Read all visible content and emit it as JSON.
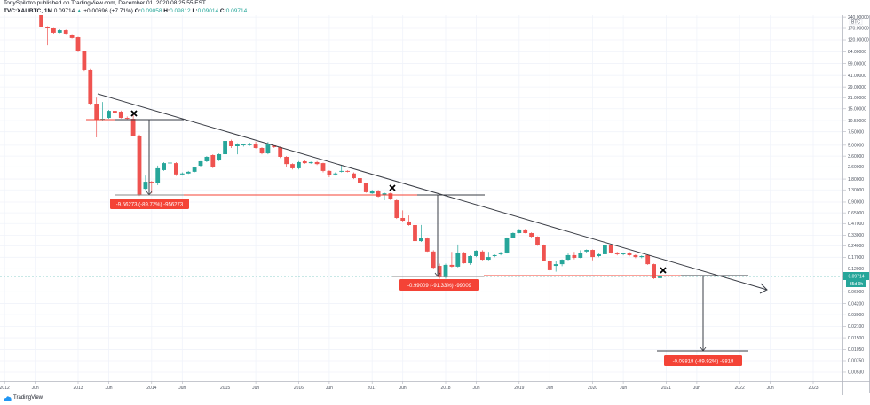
{
  "header": {
    "publish_line": "TonySpilotro published on TradingView.com, December 01, 2020 08:25:55 EST",
    "symbol": "TVC:XAUBTC, 1M",
    "last": "0.09714",
    "change": "+0.00696 (+7.71%)",
    "o_label": "O:",
    "o": "0.09058",
    "h_label": "H:",
    "h": "0.09812",
    "l_label": "L:",
    "l": "0.09014",
    "c_label": "C:",
    "c": "0.09714"
  },
  "brand": "TradingView",
  "colors": {
    "up": "#26a69a",
    "down": "#ef5350",
    "grid": "#f0f3fa",
    "measure": "#f44336",
    "trend": "#3a3d45"
  },
  "chart_data": {
    "type": "candlestick",
    "interval": "1M",
    "y_scale": "log",
    "y_unit": "BTC",
    "grid": true,
    "y_ticks": [
      "240.00000",
      "170.00000",
      "120.00000",
      "84.00000",
      "59.00000",
      "41.00000",
      "29.00000",
      "21.00000",
      "15.00000",
      "10.50000",
      "7.50000",
      "5.00000",
      "3.60000",
      "2.60000",
      "1.80000",
      "1.30000",
      "0.90000",
      "0.65000",
      "0.47000",
      "0.33000",
      "0.24000",
      "0.17000",
      "0.12000",
      "0.06000",
      "0.04200",
      "0.03000",
      "0.02100",
      "0.01500",
      "0.01050",
      "0.00750",
      "0.00530"
    ],
    "x_ticks": [
      {
        "label": "2012",
        "month": "2012-01"
      },
      {
        "label": "Jun",
        "month": "2012-06"
      },
      {
        "label": "2013",
        "month": "2013-01"
      },
      {
        "label": "Jun",
        "month": "2013-06"
      },
      {
        "label": "2014",
        "month": "2014-01"
      },
      {
        "label": "Jun",
        "month": "2014-06"
      },
      {
        "label": "2015",
        "month": "2015-01"
      },
      {
        "label": "Jun",
        "month": "2015-06"
      },
      {
        "label": "2016",
        "month": "2016-01"
      },
      {
        "label": "Jun",
        "month": "2016-06"
      },
      {
        "label": "2017",
        "month": "2017-01"
      },
      {
        "label": "Jun",
        "month": "2017-06"
      },
      {
        "label": "2018",
        "month": "2018-01"
      },
      {
        "label": "Jun",
        "month": "2018-06"
      },
      {
        "label": "2019",
        "month": "2019-01"
      },
      {
        "label": "Jun",
        "month": "2019-06"
      },
      {
        "label": "2020",
        "month": "2020-01"
      },
      {
        "label": "Jun",
        "month": "2020-06"
      },
      {
        "label": "2021",
        "month": "2021-01"
      },
      {
        "label": "Jun",
        "month": "2021-06"
      },
      {
        "label": "2022",
        "month": "2022-01"
      },
      {
        "label": "Jun",
        "month": "2022-06"
      },
      {
        "label": "2023",
        "month": "2023-01"
      }
    ],
    "last_price_label": "0.09714",
    "countdown_label": "35d 9h",
    "measurements": [
      {
        "label": "-9.56273 (-89.72%) -956273"
      },
      {
        "label": "-0.99009 (-91.33%) -99009"
      },
      {
        "label": "-0.08818 (-89.92%) -8818"
      }
    ],
    "candles_columns": [
      "month",
      "open",
      "high",
      "low",
      "close"
    ],
    "candles": [
      [
        "2012-07",
        260,
        306,
        175,
        179
      ],
      [
        "2012-08",
        179,
        182,
        102,
        170
      ],
      [
        "2012-09",
        170,
        172,
        145,
        149
      ],
      [
        "2012-10",
        149,
        165,
        147,
        161
      ],
      [
        "2012-11",
        161,
        164,
        143,
        145
      ],
      [
        "2012-12",
        141,
        143,
        125,
        127
      ],
      [
        "2013-01",
        130,
        132,
        83,
        84.8
      ],
      [
        "2013-02",
        84.8,
        86,
        47,
        48.4
      ],
      [
        "2013-03",
        48.4,
        50,
        17,
        17.5
      ],
      [
        "2013-04",
        17.5,
        21,
        6.34,
        10.8
      ],
      [
        "2013-05",
        10.8,
        18.4,
        10.5,
        11.1
      ],
      [
        "2013-06",
        11.4,
        14.5,
        11.1,
        14.1
      ],
      [
        "2013-07",
        14.1,
        19.5,
        13.2,
        13.4
      ],
      [
        "2013-08",
        13.75,
        14.2,
        11.2,
        11.4
      ],
      [
        "2013-09",
        11.4,
        11.9,
        10.9,
        11.1
      ],
      [
        "2013-10",
        11.1,
        12.5,
        6.5,
        6.68
      ],
      [
        "2013-11",
        6.68,
        6.9,
        1.08,
        1.11
      ],
      [
        "2013-12",
        1.34,
        2.0,
        1.3,
        1.66
      ],
      [
        "2014-01",
        1.66,
        1.7,
        1.17,
        1.58
      ],
      [
        "2014-02",
        1.58,
        2.7,
        1.5,
        2.49
      ],
      [
        "2014-03",
        2.36,
        3.0,
        2.3,
        2.91
      ],
      [
        "2014-04",
        2.91,
        3.3,
        2.8,
        2.95
      ],
      [
        "2014-05",
        2.91,
        3.0,
        1.98,
        2.07
      ],
      [
        "2014-06",
        2.07,
        2.2,
        2.0,
        2.13
      ],
      [
        "2014-07",
        2.13,
        2.3,
        2.1,
        2.24
      ],
      [
        "2014-08",
        2.24,
        2.6,
        2.2,
        2.55
      ],
      [
        "2014-09",
        2.69,
        3.1,
        2.6,
        3.08
      ],
      [
        "2014-10",
        3.08,
        3.6,
        3.0,
        3.52
      ],
      [
        "2014-11",
        3.71,
        3.8,
        2.5,
        2.62
      ],
      [
        "2014-12",
        3.16,
        3.9,
        3.1,
        3.81
      ],
      [
        "2015-01",
        3.81,
        7.86,
        3.7,
        5.69
      ],
      [
        "2015-02",
        5.69,
        5.9,
        4.6,
        4.85
      ],
      [
        "2015-03",
        4.85,
        5.3,
        3.8,
        5.11
      ],
      [
        "2015-04",
        4.98,
        5.2,
        4.8,
        5.11
      ],
      [
        "2015-05",
        5.0,
        5.4,
        4.9,
        5.11
      ],
      [
        "2015-06",
        5.11,
        5.6,
        4.5,
        4.6
      ],
      [
        "2015-07",
        4.6,
        4.7,
        3.8,
        3.91
      ],
      [
        "2015-08",
        3.91,
        5.5,
        3.8,
        5.11
      ],
      [
        "2015-09",
        4.98,
        5.0,
        4.6,
        4.72
      ],
      [
        "2015-10",
        4.72,
        4.8,
        3.4,
        3.52
      ],
      [
        "2015-11",
        3.52,
        3.6,
        2.6,
        2.83
      ],
      [
        "2015-12",
        2.83,
        2.9,
        2.4,
        2.49
      ],
      [
        "2016-01",
        2.49,
        3.1,
        2.4,
        3.0
      ],
      [
        "2016-02",
        3.08,
        3.2,
        2.85,
        2.91
      ],
      [
        "2016-03",
        2.91,
        3.05,
        2.85,
        3.0
      ],
      [
        "2016-04",
        3.0,
        3.1,
        2.75,
        2.83
      ],
      [
        "2016-05",
        2.91,
        2.95,
        2.2,
        2.3
      ],
      [
        "2016-06",
        2.3,
        2.35,
        1.9,
        2.02
      ],
      [
        "2016-07",
        2.07,
        2.2,
        2.0,
        2.13
      ],
      [
        "2016-08",
        2.24,
        2.75,
        2.2,
        2.3
      ],
      [
        "2016-09",
        2.3,
        2.35,
        2.2,
        2.24
      ],
      [
        "2016-10",
        2.13,
        2.2,
        1.8,
        1.85
      ],
      [
        "2016-11",
        1.85,
        1.95,
        1.6,
        1.62
      ],
      [
        "2016-12",
        1.58,
        1.6,
        1.19,
        1.21
      ],
      [
        "2017-01",
        1.17,
        1.3,
        1.15,
        1.27
      ],
      [
        "2017-02",
        1.27,
        1.3,
        1.04,
        1.06
      ],
      [
        "2017-03",
        1.11,
        1.2,
        0.95,
        1.17
      ],
      [
        "2017-04",
        1.17,
        1.2,
        0.95,
        0.974
      ],
      [
        "2017-05",
        0.948,
        0.97,
        0.54,
        0.556
      ],
      [
        "2017-06",
        0.556,
        0.7,
        0.5,
        0.513
      ],
      [
        "2017-07",
        0.5,
        0.6,
        0.44,
        0.449
      ],
      [
        "2017-08",
        0.449,
        0.46,
        0.27,
        0.277
      ],
      [
        "2017-09",
        0.277,
        0.45,
        0.27,
        0.308
      ],
      [
        "2017-10",
        0.3,
        0.31,
        0.2,
        0.202
      ],
      [
        "2017-11",
        0.202,
        0.21,
        0.12,
        0.124
      ],
      [
        "2017-12",
        0.131,
        0.14,
        0.089,
        0.0927
      ],
      [
        "2018-01",
        0.0927,
        0.14,
        0.089,
        0.135
      ],
      [
        "2018-02",
        0.135,
        0.2,
        0.125,
        0.128
      ],
      [
        "2018-03",
        0.128,
        0.25,
        0.125,
        0.196
      ],
      [
        "2018-04",
        0.196,
        0.2,
        0.14,
        0.142
      ],
      [
        "2018-05",
        0.142,
        0.18,
        0.135,
        0.176
      ],
      [
        "2018-06",
        0.176,
        0.21,
        0.17,
        0.207
      ],
      [
        "2018-07",
        0.202,
        0.21,
        0.155,
        0.158
      ],
      [
        "2018-08",
        0.158,
        0.2,
        0.155,
        0.171
      ],
      [
        "2018-09",
        0.176,
        0.185,
        0.17,
        0.181
      ],
      [
        "2018-10",
        0.186,
        0.2,
        0.18,
        0.196
      ],
      [
        "2018-11",
        0.196,
        0.31,
        0.19,
        0.308
      ],
      [
        "2018-12",
        0.308,
        0.36,
        0.3,
        0.353
      ],
      [
        "2019-01",
        0.353,
        0.4,
        0.35,
        0.393
      ],
      [
        "2019-02",
        0.393,
        0.4,
        0.35,
        0.353
      ],
      [
        "2019-03",
        0.353,
        0.36,
        0.31,
        0.317
      ],
      [
        "2019-04",
        0.317,
        0.32,
        0.24,
        0.249
      ],
      [
        "2019-05",
        0.249,
        0.25,
        0.15,
        0.154
      ],
      [
        "2019-06",
        0.15,
        0.16,
        0.11,
        0.115
      ],
      [
        "2019-07",
        0.131,
        0.15,
        0.11,
        0.138
      ],
      [
        "2019-08",
        0.138,
        0.16,
        0.13,
        0.158
      ],
      [
        "2019-09",
        0.158,
        0.19,
        0.155,
        0.181
      ],
      [
        "2019-10",
        0.181,
        0.2,
        0.16,
        0.167
      ],
      [
        "2019-11",
        0.167,
        0.21,
        0.165,
        0.191
      ],
      [
        "2019-12",
        0.202,
        0.215,
        0.195,
        0.212
      ],
      [
        "2020-01",
        0.212,
        0.215,
        0.155,
        0.171
      ],
      [
        "2020-02",
        0.176,
        0.19,
        0.17,
        0.186
      ],
      [
        "2020-03",
        0.186,
        0.393,
        0.18,
        0.249
      ],
      [
        "2020-04",
        0.249,
        0.25,
        0.19,
        0.196
      ],
      [
        "2020-05",
        0.196,
        0.2,
        0.18,
        0.186
      ],
      [
        "2020-06",
        0.186,
        0.195,
        0.18,
        0.191
      ],
      [
        "2020-07",
        0.196,
        0.2,
        0.175,
        0.181
      ],
      [
        "2020-08",
        0.181,
        0.185,
        0.165,
        0.171
      ],
      [
        "2020-09",
        0.171,
        0.18,
        0.165,
        0.176
      ],
      [
        "2020-10",
        0.181,
        0.185,
        0.135,
        0.138
      ],
      [
        "2020-11",
        0.138,
        0.14,
        0.088,
        0.0902
      ],
      [
        "2020-12",
        0.09058,
        0.09812,
        0.09014,
        0.09714
      ]
    ]
  }
}
